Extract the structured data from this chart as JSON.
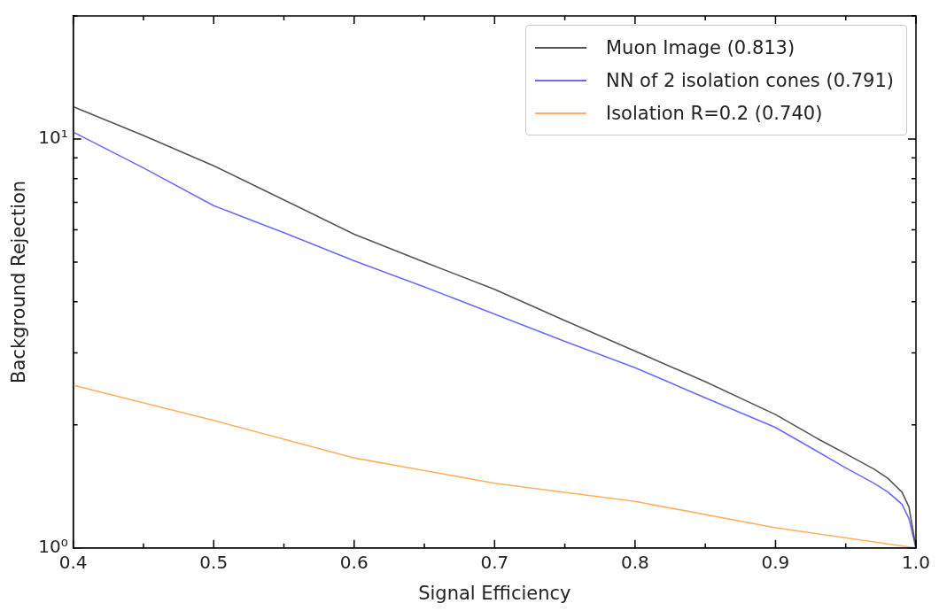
{
  "chart_data": {
    "type": "line",
    "xlabel": "Signal Efficiency",
    "ylabel": "Background Rejection",
    "log": "y",
    "grid": false,
    "legend": "top right",
    "marker": "none",
    "line_style": "solid",
    "xlim": [
      0.4,
      1.0
    ],
    "xticks": [
      0.4,
      {
        "value": 0.45,
        "label": null
      },
      0.5,
      {
        "value": 0.55,
        "label": null
      },
      0.6,
      {
        "value": 0.65,
        "label": null
      },
      0.7,
      {
        "value": 0.75,
        "label": null
      },
      0.8,
      {
        "value": 0.85,
        "label": null
      },
      0.9,
      {
        "value": 0.95,
        "label": null
      },
      {
        "value": 1.0,
        "label": "1.0"
      }
    ],
    "ylim": [
      1,
      20
    ],
    "yticks": [
      {
        "value": 1,
        "label": "10⁰"
      },
      {
        "value": 2,
        "label": null
      },
      {
        "value": 3,
        "label": null
      },
      {
        "value": 4,
        "label": null
      },
      {
        "value": 5,
        "label": null
      },
      {
        "value": 6,
        "label": null
      },
      {
        "value": 7,
        "label": null
      },
      {
        "value": 8,
        "label": null
      },
      {
        "value": 9,
        "label": null
      },
      {
        "value": 10,
        "label": "10¹"
      },
      {
        "value": 20,
        "label": null
      }
    ],
    "series": [
      {
        "name": "Muon Image (0.813)",
        "color": "#555555",
        "x": [
          0.4,
          0.45,
          0.5,
          0.55,
          0.6,
          0.65,
          0.7,
          0.75,
          0.8,
          0.85,
          0.9,
          0.93,
          0.95,
          0.97,
          0.98,
          0.99,
          0.995,
          1.0
        ],
        "values": [
          12.0,
          10.2,
          8.6,
          7.1,
          5.85,
          5.0,
          4.29,
          3.6,
          3.03,
          2.55,
          2.12,
          1.85,
          1.7,
          1.56,
          1.48,
          1.37,
          1.26,
          1.0
        ]
      },
      {
        "name": "NN of 2 isolation cones (0.791)",
        "color": "#6b6bff",
        "x": [
          0.4,
          0.45,
          0.5,
          0.55,
          0.6,
          0.65,
          0.7,
          0.75,
          0.8,
          0.85,
          0.9,
          0.93,
          0.95,
          0.97,
          0.98,
          0.99,
          0.995,
          1.0
        ],
        "values": [
          10.4,
          8.5,
          6.87,
          5.9,
          5.04,
          4.35,
          3.73,
          3.2,
          2.76,
          2.33,
          1.97,
          1.72,
          1.57,
          1.44,
          1.37,
          1.28,
          1.18,
          1.0
        ]
      },
      {
        "name": "Isolation R=0.2 (0.740)",
        "color": "#ffb061",
        "x": [
          0.4,
          0.5,
          0.6,
          0.7,
          0.8,
          0.9,
          1.0
        ],
        "values": [
          2.5,
          2.05,
          1.66,
          1.44,
          1.3,
          1.12,
          1.0
        ]
      }
    ]
  }
}
